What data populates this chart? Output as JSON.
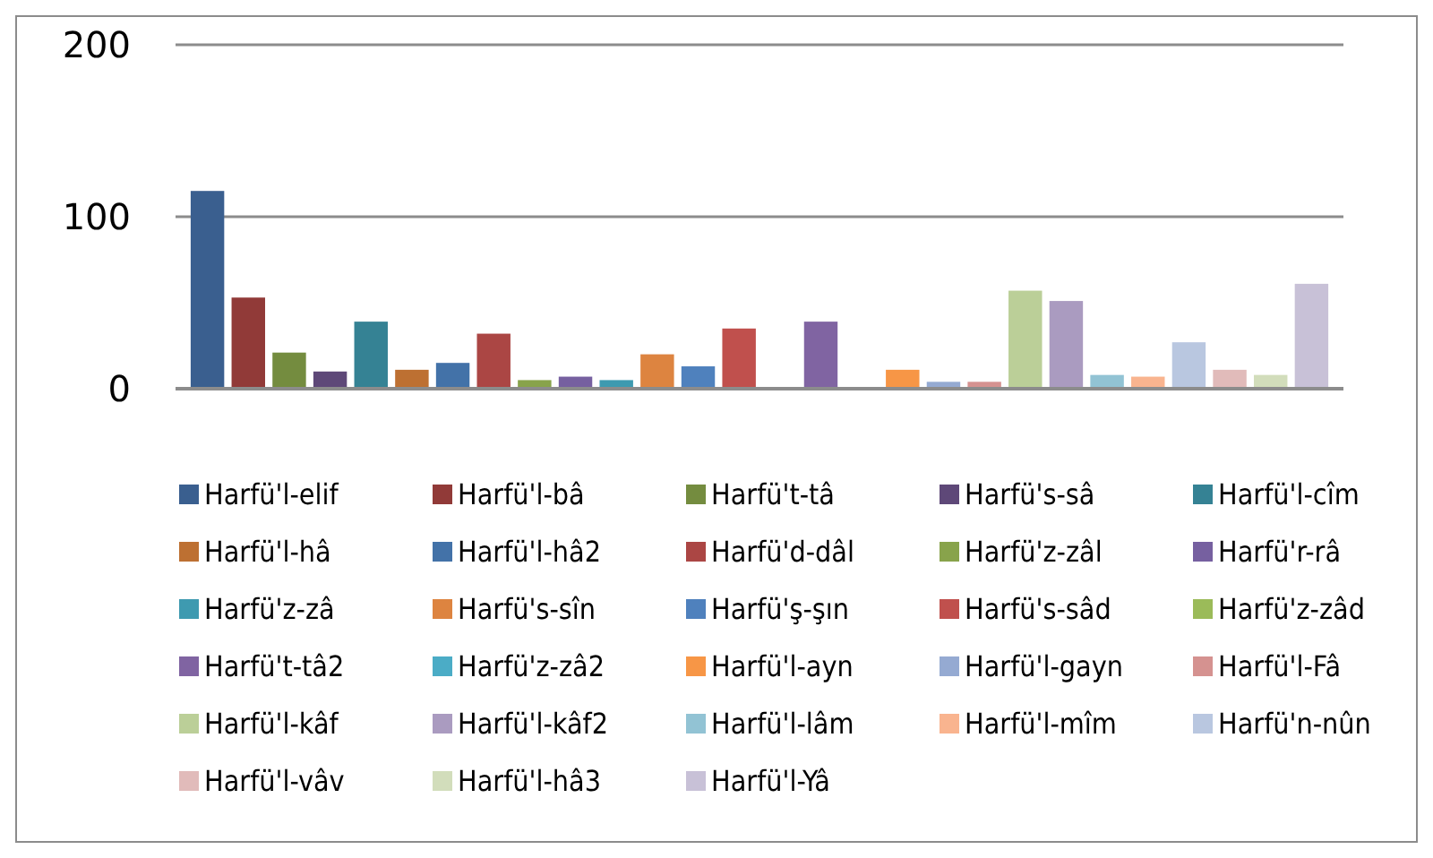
{
  "chart_data": {
    "type": "bar",
    "categories": [
      null
    ],
    "ylim": [
      0,
      200
    ],
    "yticks": [
      0,
      100,
      200
    ],
    "grid": "y",
    "legend": "bottom",
    "series": [
      {
        "name": "Harfü'l-elif",
        "color": "#3a5f8f",
        "values": [
          115
        ]
      },
      {
        "name": "Harfü'l-bâ",
        "color": "#913a38",
        "values": [
          53
        ]
      },
      {
        "name": "Harfü't-tâ",
        "color": "#748c3f",
        "values": [
          21
        ]
      },
      {
        "name": "Harfü's-sâ",
        "color": "#5e4878",
        "values": [
          10
        ]
      },
      {
        "name": "Harfü'l-cîm",
        "color": "#358294",
        "values": [
          39
        ]
      },
      {
        "name": "Harfü'l-hâ",
        "color": "#bd7032",
        "values": [
          11
        ]
      },
      {
        "name": "Harfü'l-hâ2",
        "color": "#4372a8",
        "values": [
          15
        ]
      },
      {
        "name": "Harfü'd-dâl",
        "color": "#ab4644",
        "values": [
          32
        ]
      },
      {
        "name": "Harfü'z-zâl",
        "color": "#88a34b",
        "values": [
          5
        ]
      },
      {
        "name": "Harfü'r-râ",
        "color": "#7660a0",
        "values": [
          7
        ]
      },
      {
        "name": "Harfü'z-zâ",
        "color": "#3e9ab0",
        "values": [
          5
        ]
      },
      {
        "name": "Harfü's-sîn",
        "color": "#dd8440",
        "values": [
          20
        ]
      },
      {
        "name": "Harfü'ş-şın",
        "color": "#4f81bd",
        "values": [
          13
        ]
      },
      {
        "name": "Harfü's-sâd",
        "color": "#c0504d",
        "values": [
          35
        ]
      },
      {
        "name": "Harfü'z-zâd",
        "color": "#9bbb59",
        "values": [
          1
        ]
      },
      {
        "name": "Harfü't-tâ2",
        "color": "#8064a2",
        "values": [
          39
        ]
      },
      {
        "name": "Harfü'z-zâ2",
        "color": "#4bacc6",
        "values": [
          0
        ]
      },
      {
        "name": "Harfü'l-ayn",
        "color": "#f79646",
        "values": [
          11
        ]
      },
      {
        "name": "Harfü'l-gayn",
        "color": "#95aad2",
        "values": [
          4
        ]
      },
      {
        "name": "Harfü'l-Fâ",
        "color": "#d59290",
        "values": [
          4
        ]
      },
      {
        "name": "Harfü'l-kâf",
        "color": "#bbcf98",
        "values": [
          57
        ]
      },
      {
        "name": "Harfü'l-kâf2",
        "color": "#aa9bc0",
        "values": [
          51
        ]
      },
      {
        "name": "Harfü'l-lâm",
        "color": "#92c3d4",
        "values": [
          8
        ]
      },
      {
        "name": "Harfü'l-mîm",
        "color": "#f9b48f",
        "values": [
          7
        ]
      },
      {
        "name": "Harfü'n-nûn",
        "color": "#b9c7e0",
        "values": [
          27
        ]
      },
      {
        "name": "Harfü'l-vâv",
        "color": "#e1bbba",
        "values": [
          11
        ]
      },
      {
        "name": "Harfü'l-hâ3",
        "color": "#d2ddbb",
        "values": [
          8
        ]
      },
      {
        "name": "Harfü'l-Yâ",
        "color": "#c8c1d7",
        "values": [
          61
        ]
      }
    ]
  }
}
